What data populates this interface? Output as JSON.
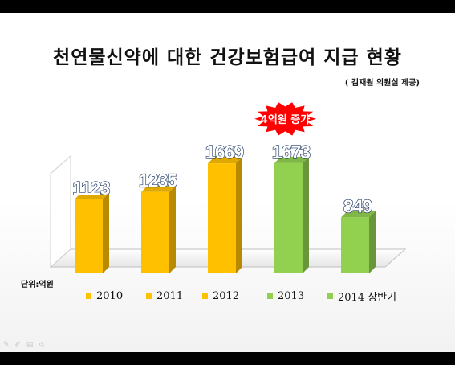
{
  "chart_data": {
    "type": "bar",
    "title": "천연물신약에 대한 건강보험급여 지급 현황",
    "subtitle": "( 김재원 의원실 제공)",
    "unit_label": "단위:억원",
    "categories": [
      "2010",
      "2011",
      "2012",
      "2013",
      "2014 상반기"
    ],
    "values": [
      1123,
      1235,
      1669,
      1673,
      849
    ],
    "data_labels": [
      "1123",
      "1235",
      "1669",
      "1673",
      "849"
    ],
    "colors": [
      "#FFC000",
      "#FFC000",
      "#FFC000",
      "#92D050",
      "#92D050"
    ],
    "annotation": "4억원 증가",
    "annotation_color": "#FF0000",
    "ylim": [
      0,
      2000
    ],
    "grid": false,
    "legend_position": "bottom"
  },
  "icons": [
    "pen-icon",
    "edit-icon",
    "menu-icon",
    "arrow-icon"
  ]
}
